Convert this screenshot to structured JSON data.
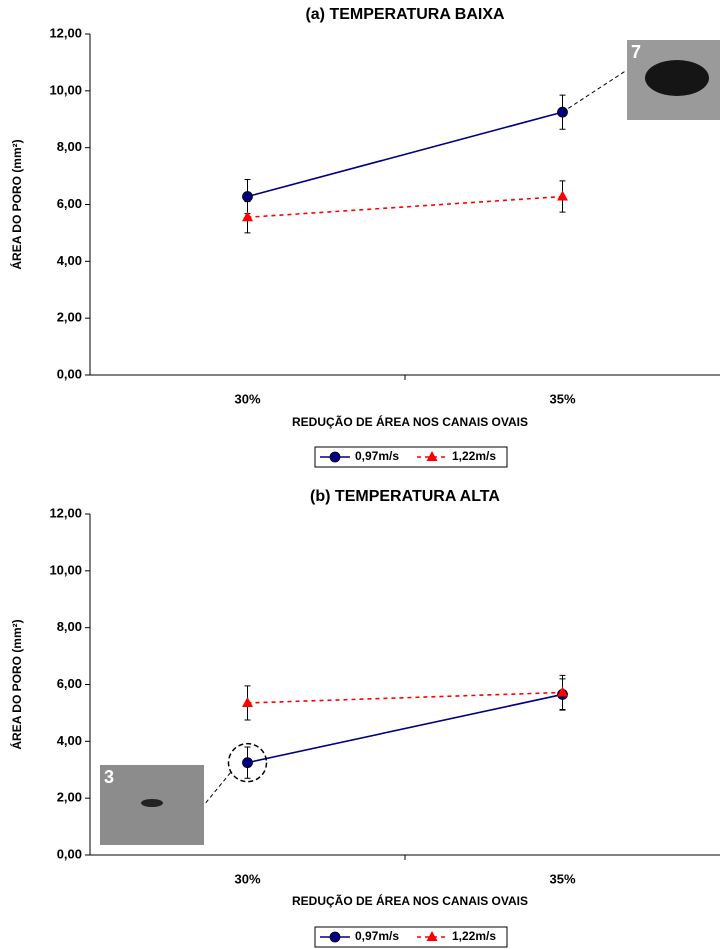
{
  "chart_data": [
    {
      "type": "line",
      "title": "(a) TEMPERATURA BAIXA",
      "x_label": "REDUÇÃO DE ÁREA NOS CANAIS OVAIS",
      "y_label": "ÁREA DO PORO (mm²)",
      "categories": [
        "30%",
        "35%"
      ],
      "series": [
        {
          "name": "0,97m/s",
          "color": "#000080",
          "marker": "circle",
          "dash": false,
          "values": [
            6.28,
            9.25
          ],
          "errors": [
            0.6,
            0.6
          ]
        },
        {
          "name": "1,22m/s",
          "color": "#ff0000",
          "marker": "triangle",
          "dash": true,
          "values": [
            5.55,
            6.28
          ],
          "errors": [
            0.55,
            0.55
          ]
        }
      ],
      "ylim": [
        0,
        12
      ],
      "yticks": [
        {
          "value": 0,
          "label": "0,00"
        },
        {
          "value": 2,
          "label": "2,00"
        },
        {
          "value": 4,
          "label": "4,00"
        },
        {
          "value": 6,
          "label": "6,00"
        },
        {
          "value": 8,
          "label": "8,00"
        },
        {
          "value": 10,
          "label": "10,00"
        },
        {
          "value": 12,
          "label": "12,00"
        }
      ],
      "annotation": "7",
      "grid": false
    },
    {
      "type": "line",
      "title": "(b) TEMPERATURA ALTA",
      "x_label": "REDUÇÃO DE ÁREA NOS CANAIS OVAIS",
      "y_label": "ÁREA DO PORO (mm²)",
      "categories": [
        "30%",
        "35%"
      ],
      "series": [
        {
          "name": "0,97m/s",
          "color": "#000080",
          "marker": "circle",
          "dash": false,
          "values": [
            3.25,
            5.65
          ],
          "errors": [
            0.55,
            0.55
          ]
        },
        {
          "name": "1,22m/s",
          "color": "#ff0000",
          "marker": "triangle",
          "dash": true,
          "values": [
            5.35,
            5.72
          ],
          "errors": [
            0.6,
            0.6
          ]
        }
      ],
      "ylim": [
        0,
        12
      ],
      "yticks": [
        {
          "value": 0,
          "label": "0,00"
        },
        {
          "value": 2,
          "label": "2,00"
        },
        {
          "value": 4,
          "label": "4,00"
        },
        {
          "value": 6,
          "label": "6,00"
        },
        {
          "value": 8,
          "label": "8,00"
        },
        {
          "value": 10,
          "label": "10,00"
        },
        {
          "value": 12,
          "label": "12,00"
        }
      ],
      "annotation": "3",
      "grid": false
    }
  ]
}
